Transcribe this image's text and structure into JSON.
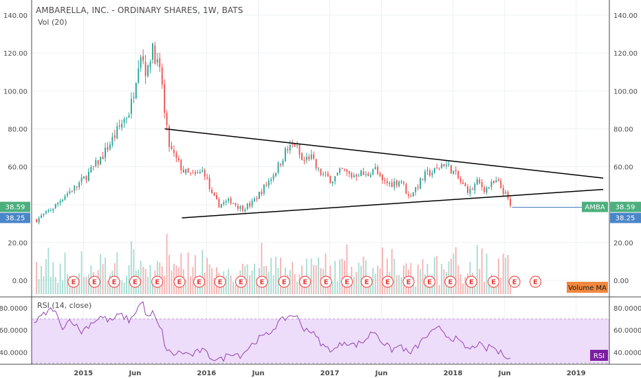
{
  "header": {
    "title": "AMBARELLA, INC. - ORDINARY SHARES, 1W, BATS",
    "volume_label": "Vol (20)",
    "volume_ma_label": "Volume MA",
    "rsi_label": "RSI (14, close)",
    "rsi_badge": "RSI",
    "earnings_marker": "E"
  },
  "colors": {
    "up": "#26a69a",
    "down": "#ef5350",
    "vol_up": "#a8dcd2",
    "vol_down": "#f6b3b3",
    "rsi_line": "#8e44ad",
    "rsi_band": "#eedcfb",
    "price_badge": "#4caf7d",
    "price_badge_blue": "#4a86c8",
    "trendline": "#000000",
    "volume_ma_badge": "#f0883e"
  },
  "chart_data": [
    {
      "type": "candlestick",
      "title": "AMBARELLA, INC. - ORDINARY SHARES, 1W, BATS",
      "x_ticks": [
        "2015",
        "Jun",
        "2016",
        "Jun",
        "2017",
        "Jun",
        "2018",
        "Jun",
        "2019"
      ],
      "y_ticks": [
        "0.00",
        "20.00",
        "40.00",
        "60.00",
        "80.00",
        "100.00",
        "120.00",
        "140.00"
      ],
      "ylim": [
        -8,
        148
      ],
      "price_path": [
        [
          2014.62,
          32
        ],
        [
          2014.75,
          38
        ],
        [
          2014.85,
          45
        ],
        [
          2014.95,
          50
        ],
        [
          2015.05,
          57
        ],
        [
          2015.15,
          65
        ],
        [
          2015.25,
          76
        ],
        [
          2015.33,
          85
        ],
        [
          2015.38,
          90
        ],
        [
          2015.42,
          105
        ],
        [
          2015.46,
          122
        ],
        [
          2015.48,
          118
        ],
        [
          2015.52,
          108
        ],
        [
          2015.56,
          126
        ],
        [
          2015.6,
          113
        ],
        [
          2015.64,
          104
        ],
        [
          2015.66,
          86
        ],
        [
          2015.7,
          70
        ],
        [
          2015.75,
          64
        ],
        [
          2015.82,
          57
        ],
        [
          2015.9,
          55
        ],
        [
          2015.98,
          58
        ],
        [
          2016.04,
          45
        ],
        [
          2016.1,
          40
        ],
        [
          2016.2,
          42
        ],
        [
          2016.28,
          38
        ],
        [
          2016.36,
          40
        ],
        [
          2016.42,
          45
        ],
        [
          2016.5,
          52
        ],
        [
          2016.58,
          60
        ],
        [
          2016.64,
          68
        ],
        [
          2016.72,
          72
        ],
        [
          2016.78,
          62
        ],
        [
          2016.84,
          66
        ],
        [
          2016.9,
          58
        ],
        [
          2016.96,
          55
        ],
        [
          2017.02,
          53
        ],
        [
          2017.1,
          58
        ],
        [
          2017.18,
          55
        ],
        [
          2017.24,
          57
        ],
        [
          2017.3,
          55
        ],
        [
          2017.36,
          60
        ],
        [
          2017.42,
          52
        ],
        [
          2017.5,
          51
        ],
        [
          2017.58,
          53
        ],
        [
          2017.64,
          44
        ],
        [
          2017.7,
          49
        ],
        [
          2017.78,
          56
        ],
        [
          2017.86,
          58
        ],
        [
          2017.92,
          62
        ],
        [
          2017.98,
          59
        ],
        [
          2018.02,
          56
        ],
        [
          2018.08,
          50
        ],
        [
          2018.14,
          47
        ],
        [
          2018.2,
          52
        ],
        [
          2018.26,
          48
        ],
        [
          2018.3,
          50
        ],
        [
          2018.36,
          52
        ],
        [
          2018.42,
          46
        ],
        [
          2018.45,
          42
        ],
        [
          2018.47,
          38.6
        ]
      ],
      "last_price": "38.59",
      "price_label_2": "38.25",
      "symbol_badge": "AMBA",
      "trendlines": [
        {
          "name": "upper",
          "x": [
            2015.66,
            2019.22
          ],
          "y": [
            80,
            54
          ]
        },
        {
          "name": "lower",
          "x": [
            2015.8,
            2019.22
          ],
          "y": [
            33,
            48
          ]
        },
        {
          "name": "horizontal",
          "x": [
            2018.48,
            2019.22
          ],
          "y": [
            38.59,
            38.59
          ]
        }
      ]
    },
    {
      "type": "bar",
      "title": "Vol (20)",
      "earnings_x": [
        2014.92,
        2015.09,
        2015.25,
        2015.42,
        2015.6,
        2015.78,
        2015.94,
        2016.11,
        2016.28,
        2016.45,
        2016.63,
        2016.8,
        2016.97,
        2017.14,
        2017.3,
        2017.47,
        2017.64,
        2017.81,
        2017.98,
        2018.15,
        2018.33,
        2018.5,
        2018.67
      ]
    },
    {
      "type": "line",
      "title": "RSI (14, close)",
      "y_ticks": [
        "40.0000",
        "60.0000",
        "80.0000"
      ],
      "ylim": [
        29,
        88
      ],
      "band": [
        30,
        70
      ],
      "rsi_path": [
        [
          2014.6,
          66
        ],
        [
          2014.68,
          74
        ],
        [
          2014.76,
          80
        ],
        [
          2014.82,
          62
        ],
        [
          2014.9,
          70
        ],
        [
          2014.98,
          58
        ],
        [
          2015.06,
          66
        ],
        [
          2015.14,
          72
        ],
        [
          2015.22,
          68
        ],
        [
          2015.3,
          74
        ],
        [
          2015.38,
          68
        ],
        [
          2015.44,
          80
        ],
        [
          2015.48,
          86
        ],
        [
          2015.52,
          70
        ],
        [
          2015.56,
          76
        ],
        [
          2015.6,
          66
        ],
        [
          2015.64,
          58
        ],
        [
          2015.67,
          42
        ],
        [
          2015.72,
          38
        ],
        [
          2015.8,
          40
        ],
        [
          2015.88,
          37
        ],
        [
          2015.96,
          42
        ],
        [
          2016.04,
          35
        ],
        [
          2016.12,
          33
        ],
        [
          2016.2,
          40
        ],
        [
          2016.28,
          37
        ],
        [
          2016.34,
          44
        ],
        [
          2016.42,
          52
        ],
        [
          2016.5,
          56
        ],
        [
          2016.58,
          66
        ],
        [
          2016.66,
          72
        ],
        [
          2016.72,
          74
        ],
        [
          2016.78,
          62
        ],
        [
          2016.84,
          60
        ],
        [
          2016.9,
          52
        ],
        [
          2016.96,
          44
        ],
        [
          2017.04,
          42
        ],
        [
          2017.12,
          50
        ],
        [
          2017.2,
          46
        ],
        [
          2017.28,
          50
        ],
        [
          2017.36,
          60
        ],
        [
          2017.42,
          50
        ],
        [
          2017.5,
          42
        ],
        [
          2017.58,
          46
        ],
        [
          2017.64,
          38
        ],
        [
          2017.7,
          44
        ],
        [
          2017.78,
          54
        ],
        [
          2017.84,
          58
        ],
        [
          2017.9,
          62
        ],
        [
          2017.96,
          54
        ],
        [
          2018.02,
          52
        ],
        [
          2018.08,
          46
        ],
        [
          2018.14,
          42
        ],
        [
          2018.2,
          48
        ],
        [
          2018.26,
          42
        ],
        [
          2018.32,
          46
        ],
        [
          2018.36,
          40
        ],
        [
          2018.42,
          38
        ],
        [
          2018.47,
          35
        ]
      ]
    }
  ]
}
